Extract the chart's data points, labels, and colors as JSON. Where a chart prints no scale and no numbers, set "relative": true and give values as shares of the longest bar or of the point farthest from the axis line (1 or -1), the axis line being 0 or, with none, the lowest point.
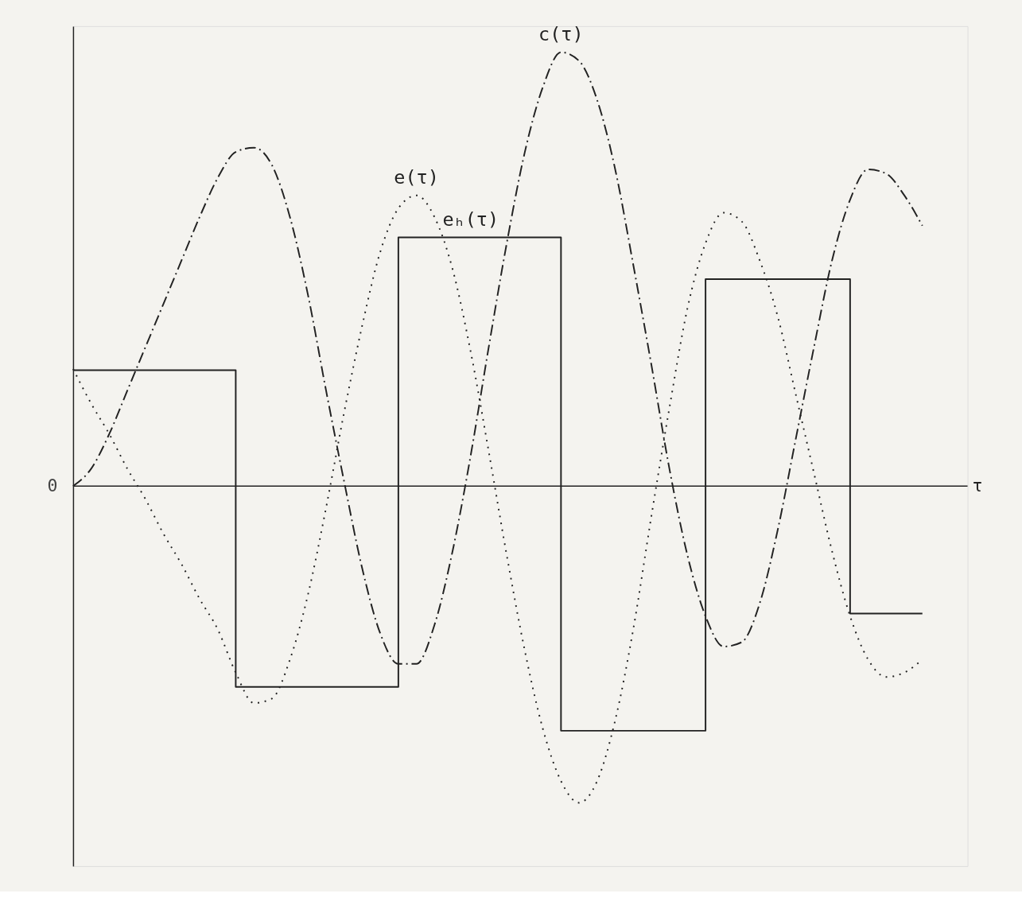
{
  "chart_data": {
    "type": "line",
    "relative": true,
    "xlabel": "τ",
    "categories": [
      null,
      null,
      null,
      null,
      null,
      null,
      null,
      null,
      null,
      null,
      null,
      null,
      null,
      null,
      null,
      null,
      null,
      null,
      null,
      null,
      null,
      null,
      null,
      null,
      null,
      null,
      null,
      null,
      null,
      null,
      null,
      null,
      null,
      null,
      null,
      null,
      null,
      null,
      null,
      null,
      null,
      null,
      null,
      null,
      null,
      null,
      null,
      null
    ],
    "series": [
      {
        "name": "eₕ(τ)",
        "type": "step",
        "line_style": "solid",
        "color": "#222222",
        "values": [
          0.267,
          0.267,
          0.267,
          0.267,
          0.267,
          0.267,
          0.267,
          0.267,
          0.267,
          -0.463,
          -0.463,
          -0.463,
          -0.463,
          -0.463,
          -0.463,
          -0.463,
          -0.463,
          -0.463,
          0.573,
          0.573,
          0.573,
          0.573,
          0.573,
          0.573,
          0.573,
          0.573,
          0.573,
          -0.564,
          -0.564,
          -0.564,
          -0.564,
          -0.564,
          -0.564,
          -0.564,
          -0.564,
          0.477,
          0.477,
          0.477,
          0.477,
          0.477,
          0.477,
          0.477,
          0.477,
          -0.294,
          -0.294,
          -0.294,
          -0.294,
          -0.294
        ]
      },
      {
        "name": "c(τ)",
        "line_style": "dashed",
        "color": "#222222",
        "values": [
          0,
          0.04,
          0.12,
          0.22,
          0.32,
          0.42,
          0.52,
          0.62,
          0.71,
          0.77,
          0.78,
          0.74,
          0.62,
          0.44,
          0.22,
          0.01,
          -0.19,
          -0.34,
          -0.41,
          -0.41,
          -0.32,
          -0.15,
          0.07,
          0.32,
          0.56,
          0.77,
          0.92,
          1.0,
          0.98,
          0.89,
          0.73,
          0.51,
          0.28,
          0.04,
          -0.16,
          -0.3,
          -0.37,
          -0.36,
          -0.27,
          -0.1,
          0.11,
          0.32,
          0.52,
          0.66,
          0.73,
          0.72,
          0.67,
          0.6
        ]
      },
      {
        "name": "e(τ)",
        "line_style": "dotted",
        "color": "#222222",
        "values": [
          0.27,
          0.19,
          0.12,
          0.04,
          -0.03,
          -0.11,
          -0.18,
          -0.26,
          -0.33,
          -0.43,
          -0.5,
          -0.49,
          -0.4,
          -0.25,
          -0.05,
          0.17,
          0.37,
          0.54,
          0.64,
          0.67,
          0.62,
          0.5,
          0.31,
          0.08,
          -0.16,
          -0.38,
          -0.56,
          -0.68,
          -0.73,
          -0.68,
          -0.54,
          -0.33,
          -0.07,
          0.18,
          0.41,
          0.56,
          0.63,
          0.61,
          0.52,
          0.39,
          0.21,
          0.03,
          -0.15,
          -0.3,
          -0.4,
          -0.44,
          -0.43,
          -0.4
        ]
      }
    ],
    "annotations": [
      "0"
    ]
  }
}
